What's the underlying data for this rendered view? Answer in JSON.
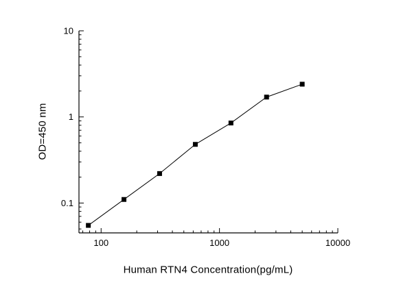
{
  "chart_data": {
    "type": "line",
    "series": [
      {
        "name": "standard-curve",
        "x": [
          78,
          156,
          312,
          625,
          1250,
          2500,
          5000
        ],
        "y": [
          0.055,
          0.11,
          0.22,
          0.48,
          0.85,
          1.7,
          2.4
        ]
      }
    ],
    "x": [
      78,
      156,
      312,
      625,
      1250,
      2500,
      5000
    ],
    "y": [
      0.055,
      0.11,
      0.22,
      0.48,
      0.85,
      1.7,
      2.4
    ],
    "title": "",
    "xlabel": "Human RTN4 Concentration(pg/mL)",
    "ylabel": "OD=450 nm",
    "x_scale": "log",
    "y_scale": "log",
    "xlim": [
      65,
      10000
    ],
    "ylim": [
      0.045,
      10
    ],
    "x_ticks": [
      100,
      1000,
      10000
    ],
    "x_tick_labels": [
      "100",
      "1000",
      "10000"
    ],
    "y_ticks": [
      0.1,
      1,
      10
    ],
    "y_tick_labels": [
      "0.1",
      "1",
      "10"
    ],
    "marker": "square",
    "marker_size": 7,
    "line_color": "#000000",
    "marker_color": "#000000",
    "axis_color": "#000000",
    "grid": false,
    "legend": "none"
  }
}
